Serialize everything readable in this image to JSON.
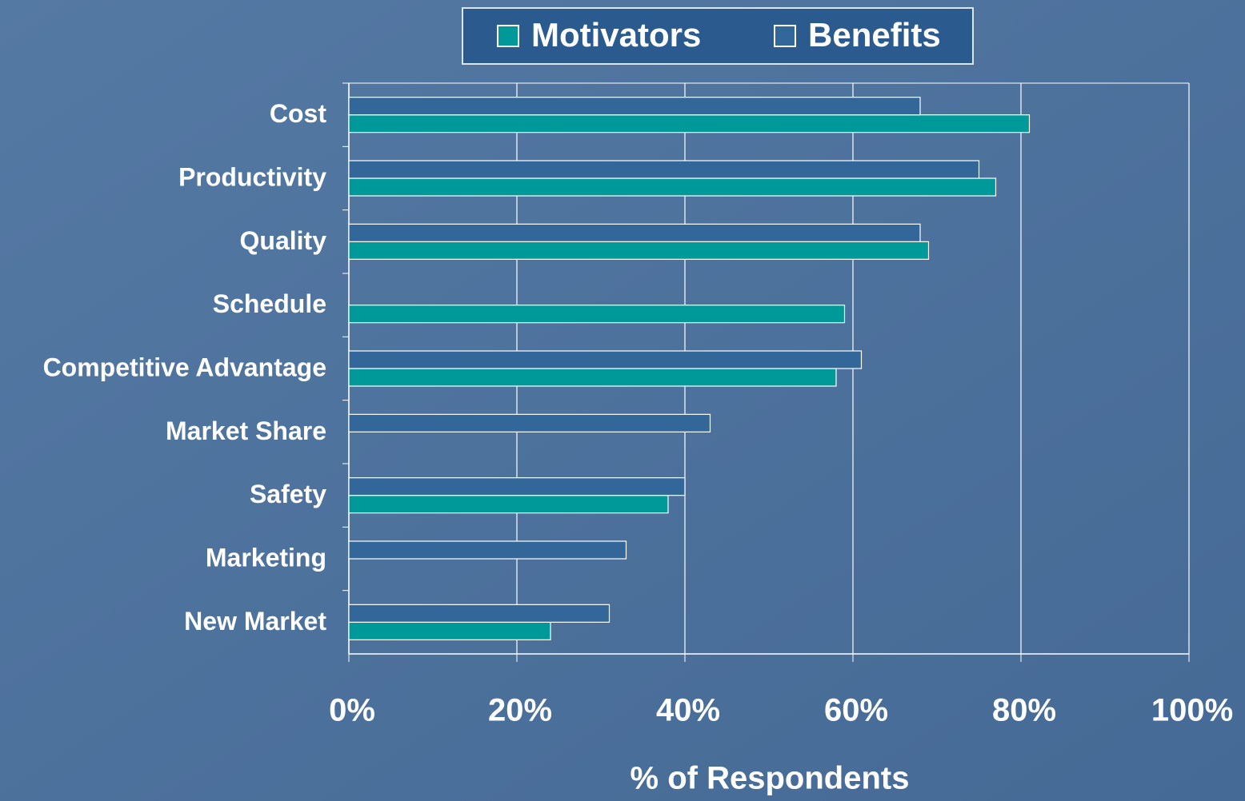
{
  "chart_data": {
    "type": "bar",
    "orientation": "horizontal",
    "categories": [
      "Cost",
      "Productivity",
      "Quality",
      "Schedule",
      "Competitive Advantage",
      "Market Share",
      "Safety",
      "Marketing",
      "New Market"
    ],
    "series": [
      {
        "name": "Motivators",
        "color": "#009999",
        "values": [
          81,
          77,
          69,
          59,
          58,
          null,
          38,
          null,
          24
        ]
      },
      {
        "name": "Benefits",
        "color": "#336699",
        "values": [
          68,
          75,
          68,
          null,
          61,
          43,
          40,
          33,
          31
        ]
      }
    ],
    "x_label": "% of Respondents",
    "xlim": [
      0,
      100
    ],
    "xticks": [
      {
        "value": 0,
        "label": "0%"
      },
      {
        "value": 20,
        "label": "20%"
      },
      {
        "value": 40,
        "label": "40%"
      },
      {
        "value": 60,
        "label": "60%"
      },
      {
        "value": 80,
        "label": "80%"
      },
      {
        "value": 100,
        "label": "100%"
      }
    ],
    "grid": true,
    "legend": "top"
  }
}
